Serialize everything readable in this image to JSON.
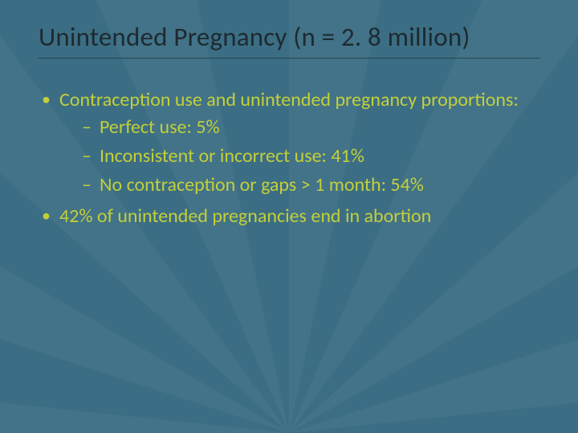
{
  "slide": {
    "background_color": "#3b6e84",
    "ray_overlay_color": "rgba(255,255,255,0.035)",
    "title": {
      "text": "Unintended Pregnancy (n = 2. 8 million)",
      "color": "#1e2a30",
      "fontsize_pt": 28,
      "underline_color": "rgba(20,30,35,0.55)"
    },
    "body_color": "#c3cf3a",
    "body_fontsize_pt": 20,
    "bullets": [
      {
        "text": "Contraception use and unintended pregnancy proportions:",
        "children": [
          {
            "text": "Perfect use: 5%"
          },
          {
            "text": "Inconsistent or incorrect use: 41%"
          },
          {
            "text": "No contraception or gaps > 1 month: 54%"
          }
        ]
      },
      {
        "text": "42% of unintended pregnancies end in abortion",
        "children": []
      }
    ]
  }
}
